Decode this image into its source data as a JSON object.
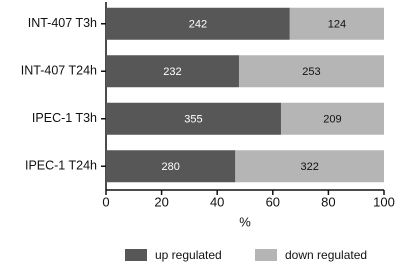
{
  "chart_data": {
    "type": "bar",
    "orientation": "horizontal",
    "stacked": "percent",
    "categories": [
      "INT-407 T3h",
      "INT-407 T24h",
      "IPEC-1 T3h",
      "IPEC-1 T24h"
    ],
    "series": [
      {
        "name": "up regulated",
        "color": "#575757",
        "label_color": "#ffffff",
        "values": [
          242,
          232,
          355,
          280
        ]
      },
      {
        "name": "down regulated",
        "color": "#b5b5b5",
        "label_color": "#111111",
        "values": [
          124,
          253,
          209,
          322
        ]
      }
    ],
    "xlabel": "%",
    "xlim": [
      0,
      100
    ],
    "xticks": [
      0,
      20,
      40,
      60,
      80,
      100
    ],
    "grid": false,
    "legend": "bottom"
  }
}
